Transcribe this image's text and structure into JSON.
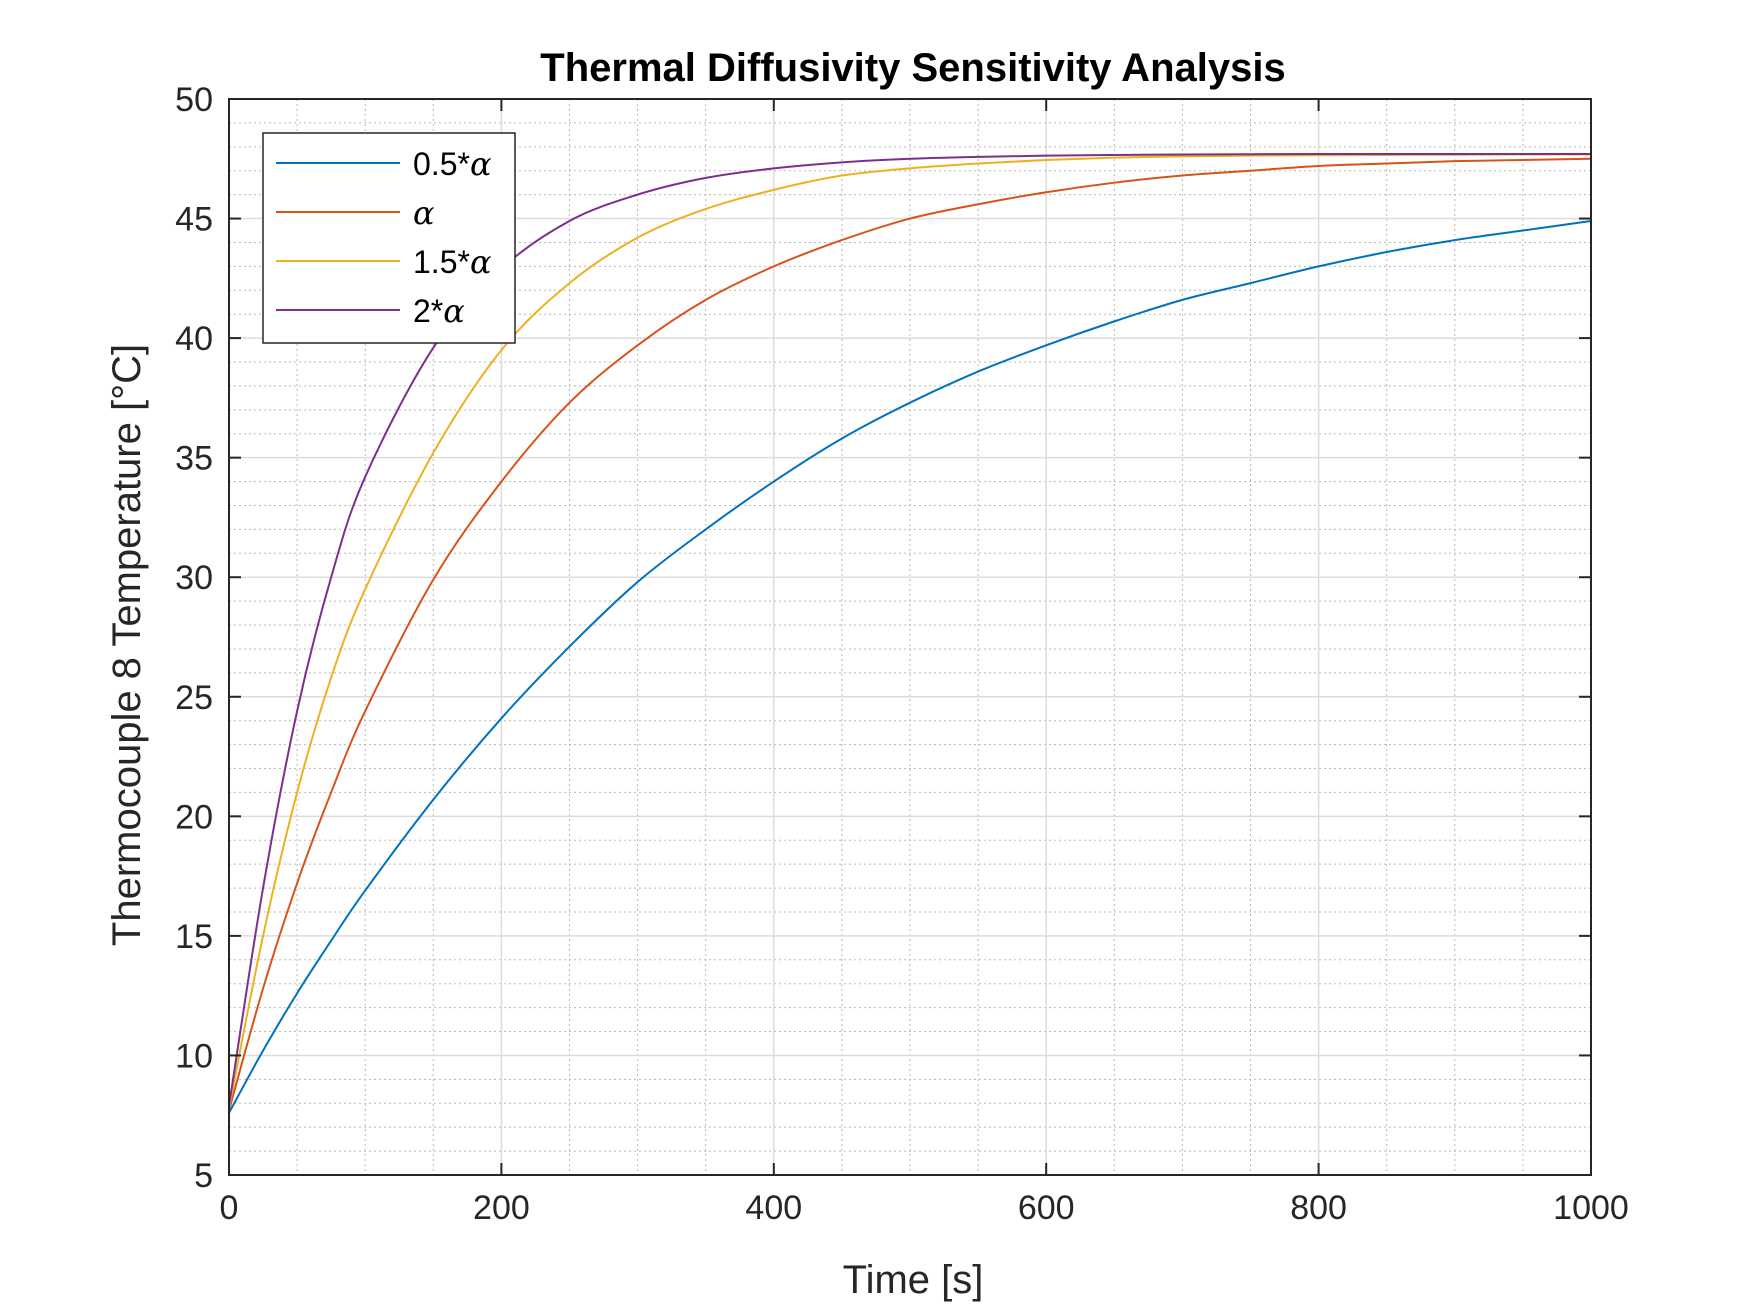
{
  "chart_data": {
    "type": "line",
    "title": "Thermal Diffusivity Sensitivity Analysis",
    "xlabel": "Time [s]",
    "ylabel": "Thermocouple 8 Temperature [°C]",
    "xlim": [
      0,
      1000
    ],
    "ylim": [
      5,
      50
    ],
    "xticks": [
      "0",
      "200",
      "400",
      "600",
      "800",
      "1000"
    ],
    "yticks": [
      "5",
      "10",
      "15",
      "20",
      "25",
      "30",
      "35",
      "40",
      "45",
      "50"
    ],
    "grid": "major and minor",
    "legend_position": "top-left",
    "x": [
      0,
      25,
      50,
      75,
      100,
      150,
      200,
      250,
      300,
      350,
      400,
      450,
      500,
      550,
      600,
      650,
      700,
      750,
      800,
      850,
      900,
      950,
      1000
    ],
    "series": [
      {
        "name": "0.5*",
        "symbol": "α",
        "color": "#0072BD",
        "values": [
          7.6,
          10.2,
          12.6,
          14.8,
          16.9,
          20.7,
          24.1,
          27.1,
          29.8,
          32.0,
          34.0,
          35.8,
          37.3,
          38.6,
          39.7,
          40.7,
          41.6,
          42.3,
          43.0,
          43.6,
          44.1,
          44.5,
          44.9
        ]
      },
      {
        "name": "",
        "symbol": "α",
        "color": "#D95319",
        "values": [
          7.7,
          12.8,
          17.2,
          21.0,
          24.4,
          29.9,
          34.0,
          37.3,
          39.7,
          41.6,
          43.0,
          44.1,
          45.0,
          45.6,
          46.1,
          46.5,
          46.8,
          47.0,
          47.2,
          47.3,
          47.4,
          47.45,
          47.5
        ]
      },
      {
        "name": "1.5*",
        "symbol": "α",
        "color": "#EDB120",
        "values": [
          7.8,
          15.0,
          21.0,
          25.8,
          29.5,
          35.2,
          39.5,
          42.3,
          44.2,
          45.4,
          46.2,
          46.8,
          47.1,
          47.3,
          47.45,
          47.55,
          47.6,
          47.63,
          47.65,
          47.66,
          47.67,
          47.68,
          47.68
        ]
      },
      {
        "name": "2*",
        "symbol": "α",
        "color": "#7E2F8E",
        "values": [
          7.9,
          17.0,
          24.4,
          30.0,
          34.2,
          39.6,
          42.9,
          44.9,
          46.0,
          46.7,
          47.1,
          47.35,
          47.5,
          47.58,
          47.63,
          47.66,
          47.68,
          47.69,
          47.7,
          47.7,
          47.7,
          47.7,
          47.7
        ]
      }
    ]
  }
}
